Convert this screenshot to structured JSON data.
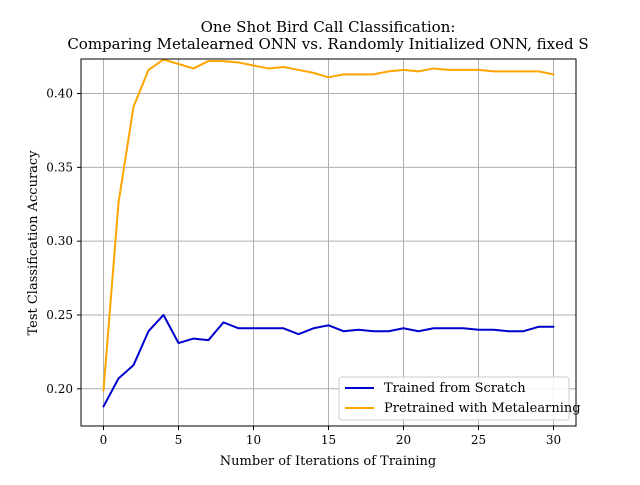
{
  "chart_data": {
    "type": "line",
    "title_lines": [
      "One Shot Bird Call Classification:",
      "Comparing Metalearned ONN vs. Randomly Initialized ONN, fixed S"
    ],
    "xlabel": "Number of Iterations of Training",
    "ylabel": "Test Classification Accuracy",
    "xlim": [
      -1.5,
      31.5
    ],
    "ylim": [
      0.1748,
      0.4234
    ],
    "xticks": [
      0,
      5,
      10,
      15,
      20,
      25,
      30
    ],
    "xtick_labels": [
      "0",
      "5",
      "10",
      "15",
      "20",
      "25",
      "30"
    ],
    "yticks": [
      0.2,
      0.25,
      0.3,
      0.35,
      0.4
    ],
    "ytick_labels": [
      "0.20",
      "0.25",
      "0.30",
      "0.35",
      "0.40"
    ],
    "grid": true,
    "legend_position": "lower-right",
    "x": [
      0,
      1,
      2,
      3,
      4,
      5,
      6,
      7,
      8,
      9,
      10,
      11,
      12,
      13,
      14,
      15,
      16,
      17,
      18,
      19,
      20,
      21,
      22,
      23,
      24,
      25,
      26,
      27,
      28,
      29,
      30
    ],
    "series": [
      {
        "name": "Trained from Scratch",
        "color": "#0000cc",
        "values": [
          0.188,
          0.207,
          0.216,
          0.239,
          0.25,
          0.231,
          0.234,
          0.233,
          0.245,
          0.241,
          0.241,
          0.241,
          0.241,
          0.237,
          0.241,
          0.243,
          0.239,
          0.24,
          0.239,
          0.239,
          0.241,
          0.239,
          0.241,
          0.241,
          0.241,
          0.24,
          0.24,
          0.239,
          0.239,
          0.242,
          0.242
        ]
      },
      {
        "name": "Pretrained with Metalearning",
        "color": "#ffa500",
        "values": [
          0.199,
          0.326,
          0.391,
          0.416,
          0.423,
          0.42,
          0.417,
          0.422,
          0.422,
          0.421,
          0.419,
          0.417,
          0.418,
          0.416,
          0.414,
          0.411,
          0.413,
          0.413,
          0.413,
          0.415,
          0.416,
          0.415,
          0.417,
          0.416,
          0.416,
          0.416,
          0.415,
          0.415,
          0.415,
          0.415,
          0.413
        ]
      }
    ]
  }
}
